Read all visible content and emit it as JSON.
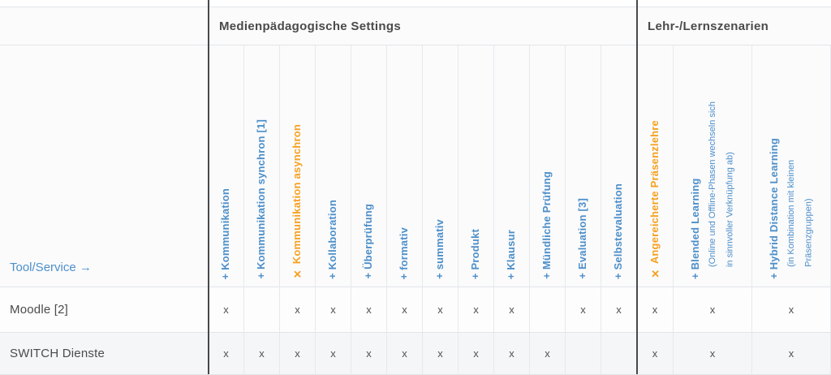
{
  "palette": {
    "blue": "#4d8fc9",
    "orange": "#f7a01e",
    "dark_text": "#4a4a4b",
    "mark_color": "#515151",
    "border_light": "#e2e5e9",
    "divider_dark": "#47494c",
    "row_alt_bg": "#f5f6f7"
  },
  "groups": {
    "settings": "Medienpädagogische Settings",
    "szenarien": "Lehr-/Lernszenarien"
  },
  "corner_label": "Tool/Service →",
  "columns": [
    {
      "text": "+ Kommunikation",
      "highlight": false
    },
    {
      "text": "+ Kommunikation synchron [1]",
      "highlight": false
    },
    {
      "text": "✕ Kommunikation asynchron",
      "highlight": true
    },
    {
      "text": "+ Kollaboration",
      "highlight": false
    },
    {
      "text": "+ Überprüfung",
      "highlight": false
    },
    {
      "text": "+ formativ",
      "highlight": false
    },
    {
      "text": "+ summativ",
      "highlight": false
    },
    {
      "text": "+ Produkt",
      "highlight": false
    },
    {
      "text": "+ Klausur",
      "highlight": false
    },
    {
      "text": "+ Mündliche Prüfung",
      "highlight": false
    },
    {
      "text": "+ Evaluation [3]",
      "highlight": false
    },
    {
      "text": "+ Selbstevaluation",
      "highlight": false
    },
    {
      "text": "✕ Angereicherte Präsenzlehre",
      "highlight": true
    },
    {
      "text": "+ Blended Learning",
      "desc1": "(Online und Offline-Phasen wechseln sich",
      "desc2": "in sinnvoller Verknüpfung ab)",
      "highlight": false
    },
    {
      "text": "+ Hybrid Distance Learning",
      "desc1": "(in Kombination mit kleinen",
      "desc2": "Präsenzgruppen)",
      "highlight": false
    }
  ],
  "rows": [
    {
      "label": "Moodle [2]",
      "marks": [
        "x",
        "",
        "x",
        "x",
        "x",
        "x",
        "x",
        "x",
        "x",
        "",
        "x",
        "x",
        "x",
        "x",
        "x"
      ]
    },
    {
      "label": "SWITCH Dienste",
      "marks": [
        "x",
        "x",
        "x",
        "x",
        "x",
        "x",
        "x",
        "x",
        "x",
        "x",
        "",
        "",
        "x",
        "x",
        "x"
      ]
    }
  ]
}
